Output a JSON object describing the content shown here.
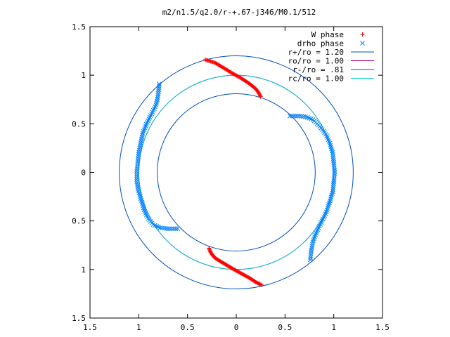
{
  "chart_data": {
    "type": "scatter",
    "title": "m2/n1.5/q2.0/r-+.67-j346/M0.1/512",
    "xlim": [
      -1.5,
      1.5
    ],
    "ylim": [
      -1.5,
      1.5
    ],
    "x_ticks": [
      -1.5,
      -1,
      -0.5,
      0,
      0.5,
      1,
      1.5
    ],
    "y_ticks": [
      -1.5,
      -1,
      -0.5,
      0,
      0.5,
      1,
      1.5
    ],
    "x_tick_labels": [
      "1.5",
      "1",
      "0.5",
      "0",
      "0.5",
      "1",
      "1.5"
    ],
    "y_tick_labels": [
      "1.5",
      "1",
      "0.5",
      "0",
      "0.5",
      "1",
      "1.5"
    ],
    "grid": false,
    "legend_position": "top-right",
    "colors": {
      "w_phase": "#ff0000",
      "drho_phase": "#0080ff",
      "r_plus": "#0050c0",
      "r_o": "#a000a0",
      "r_minus": "#0050c0",
      "r_c": "#00c8d8"
    },
    "series": [
      {
        "name": "W phase",
        "marker": "plus",
        "branches": [
          [
            [
              -0.32,
              1.16
            ],
            [
              -0.22,
              1.13
            ],
            [
              -0.12,
              1.07
            ],
            [
              -0.04,
              1.02
            ],
            [
              0.05,
              0.97
            ],
            [
              0.14,
              0.91
            ],
            [
              0.2,
              0.86
            ],
            [
              0.23,
              0.82
            ],
            [
              0.25,
              0.78
            ]
          ],
          [
            [
              -0.28,
              -0.78
            ],
            [
              -0.26,
              -0.83
            ],
            [
              -0.22,
              -0.88
            ],
            [
              -0.14,
              -0.93
            ],
            [
              -0.04,
              -0.99
            ],
            [
              0.05,
              -1.04
            ],
            [
              0.14,
              -1.09
            ],
            [
              0.2,
              -1.13
            ],
            [
              0.26,
              -1.16
            ]
          ]
        ]
      },
      {
        "name": "drho phase",
        "marker": "cross",
        "branches": [
          [
            [
              -0.79,
              0.91
            ],
            [
              -0.8,
              0.8
            ],
            [
              -0.82,
              0.7
            ],
            [
              -0.87,
              0.6
            ],
            [
              -0.92,
              0.5
            ],
            [
              -0.96,
              0.4
            ],
            [
              -0.98,
              0.3
            ],
            [
              -1.0,
              0.2
            ],
            [
              -1.01,
              0.1
            ],
            [
              -1.02,
              0.0
            ],
            [
              -1.02,
              -0.1
            ],
            [
              -1.0,
              -0.2
            ],
            [
              -0.97,
              -0.3
            ],
            [
              -0.94,
              -0.4
            ],
            [
              -0.9,
              -0.48
            ],
            [
              -0.85,
              -0.54
            ],
            [
              -0.78,
              -0.57
            ],
            [
              -0.7,
              -0.58
            ],
            [
              -0.6,
              -0.58
            ]
          ],
          [
            [
              0.55,
              0.58
            ],
            [
              0.65,
              0.58
            ],
            [
              0.72,
              0.57
            ],
            [
              0.79,
              0.54
            ],
            [
              0.86,
              0.47
            ],
            [
              0.92,
              0.39
            ],
            [
              0.96,
              0.3
            ],
            [
              0.99,
              0.2
            ],
            [
              1.0,
              0.1
            ],
            [
              1.01,
              0.0
            ],
            [
              1.0,
              -0.1
            ],
            [
              0.99,
              -0.2
            ],
            [
              0.96,
              -0.3
            ],
            [
              0.92,
              -0.42
            ],
            [
              0.88,
              -0.5
            ],
            [
              0.83,
              -0.6
            ],
            [
              0.79,
              -0.7
            ],
            [
              0.77,
              -0.8
            ],
            [
              0.76,
              -0.9
            ]
          ]
        ]
      },
      {
        "name": "r+/ro = 1.20",
        "type": "circle",
        "radius": 1.2
      },
      {
        "name": "ro/ro = 1.00",
        "type": "circle",
        "radius": 1.0
      },
      {
        "name": "r-/ro = .81",
        "type": "circle",
        "radius": 0.81
      },
      {
        "name": "rc/ro = 1.00",
        "type": "circle",
        "radius": 1.0
      }
    ]
  }
}
